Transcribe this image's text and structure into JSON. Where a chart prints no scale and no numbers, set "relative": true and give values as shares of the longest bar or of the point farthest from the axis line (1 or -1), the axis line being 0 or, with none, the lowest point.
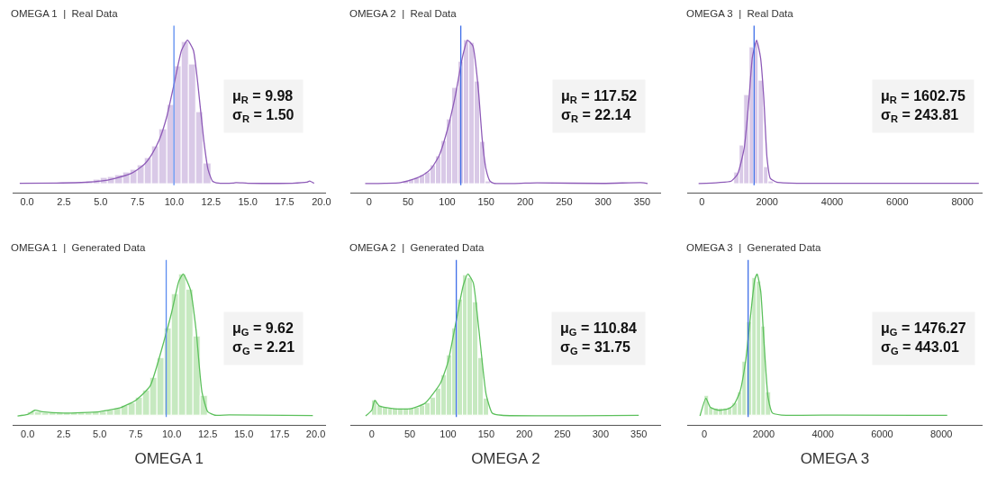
{
  "chart_data": [
    {
      "type": "histogram",
      "title": "OMEGA 1  |  Real Data",
      "relative": true,
      "tick_labels": "x",
      "xlim": [
        -1.0,
        20.3
      ],
      "xticks": [
        {
          "value": 0,
          "label": "0.0"
        },
        2.5,
        {
          "value": 5,
          "label": "5.0"
        },
        7.5,
        {
          "value": 10,
          "label": "10.0"
        },
        12.5,
        {
          "value": 15,
          "label": "15.0"
        },
        17.5,
        {
          "value": 20,
          "label": "20.0"
        }
      ],
      "series": [
        {
          "color": "#d9c9e7",
          "bins": [
            4.0,
            4.5,
            5.0,
            5.5,
            6.0,
            6.5,
            7.0,
            7.5,
            8.0,
            8.5,
            9.0,
            9.5,
            10.0,
            10.5,
            11.0,
            11.5,
            12.0,
            12.5
          ],
          "values": [
            0.02,
            0.03,
            0.04,
            0.05,
            0.06,
            0.08,
            0.1,
            0.13,
            0.18,
            0.26,
            0.38,
            0.55,
            0.82,
            0.99,
            0.83,
            0.5,
            0.14
          ]
        },
        {
          "type": "line",
          "color": "#8e5bb8",
          "x": [
            -0.5,
            2,
            4,
            5,
            6,
            7,
            7.5,
            8,
            8.5,
            9,
            9.5,
            10,
            10.5,
            10.9,
            11.3,
            11.6,
            12,
            12.3,
            12.6,
            13,
            14,
            14.2,
            15,
            18,
            19,
            19.2,
            19.5
          ],
          "values": [
            0.005,
            0.007,
            0.012,
            0.02,
            0.04,
            0.07,
            0.1,
            0.14,
            0.21,
            0.31,
            0.47,
            0.7,
            0.93,
            1.0,
            0.93,
            0.7,
            0.31,
            0.1,
            0.02,
            0.006,
            0.006,
            0.01,
            0.005,
            0.005,
            0.012,
            0.02,
            0.005
          ]
        }
      ],
      "ref_lines": [
        {
          "axis": "x",
          "value": 9.98,
          "color": "#5b8cf0"
        }
      ],
      "annotations": [
        "μ$_{R}$ = 9.98",
        "σ$_{R}$ = 1.50"
      ]
    },
    {
      "type": "histogram",
      "title": "OMEGA 2  |  Real Data",
      "relative": true,
      "tick_labels": "x",
      "xlim": [
        -24,
        374
      ],
      "xticks": [
        0,
        50,
        100,
        150,
        200,
        250,
        300,
        350
      ],
      "series": [
        {
          "color": "#d9c9e7",
          "bins": [
            44,
            51,
            58,
            65,
            72,
            79,
            86,
            93,
            100,
            107,
            114,
            121,
            128,
            135,
            142,
            149,
            156
          ],
          "values": [
            0.02,
            0.03,
            0.04,
            0.06,
            0.08,
            0.13,
            0.19,
            0.3,
            0.45,
            0.67,
            0.85,
            1.0,
            0.98,
            0.71,
            0.29,
            0.02
          ]
        },
        {
          "type": "line",
          "color": "#8e5bb8",
          "x": [
            -5,
            20,
            40,
            60,
            70,
            80,
            90,
            100,
            110,
            120,
            126,
            133,
            140,
            145,
            150,
            155,
            160,
            200,
            215,
            300,
            348,
            352,
            357
          ],
          "values": [
            0.003,
            0.005,
            0.01,
            0.04,
            0.065,
            0.11,
            0.2,
            0.37,
            0.6,
            0.89,
            1.0,
            0.96,
            0.66,
            0.31,
            0.1,
            0.02,
            0.005,
            0.006,
            0.008,
            0.004,
            0.01,
            0.008,
            0.004
          ]
        }
      ],
      "ref_lines": [
        {
          "axis": "x",
          "value": 117.52,
          "color": "#3f6fe8"
        }
      ],
      "annotations": [
        "μ$_{R}$ = 117.52",
        "σ$_{R}$ = 22.14"
      ]
    },
    {
      "type": "histogram",
      "title": "OMEGA 3  |  Real Data",
      "relative": true,
      "tick_labels": "x",
      "xlim": [
        -444,
        8604
      ],
      "xticks": [
        0,
        2000,
        4000,
        6000,
        8000
      ],
      "series": [
        {
          "color": "#d9c9e7",
          "bins": [
            1000,
            1150,
            1300,
            1450,
            1600,
            1750,
            1900,
            2050,
            2200
          ],
          "values": [
            0.08,
            0.27,
            0.62,
            0.95,
            0.98,
            0.72,
            0.12,
            0.02
          ]
        },
        {
          "type": "line",
          "color": "#8e5bb8",
          "x": [
            -100,
            500,
            900,
            1100,
            1300,
            1450,
            1550,
            1680,
            1800,
            1900,
            2000,
            2100,
            2300,
            3000,
            8500
          ],
          "values": [
            0.003,
            0.01,
            0.02,
            0.07,
            0.25,
            0.6,
            0.88,
            1.0,
            0.88,
            0.6,
            0.18,
            0.04,
            0.013,
            0.005,
            0.005
          ]
        }
      ],
      "ref_lines": [
        {
          "axis": "x",
          "value": 1602.75,
          "color": "#3f6fe8"
        }
      ],
      "annotations": [
        "μ$_{R}$ = 1602.75",
        "σ$_{R}$ = 243.81"
      ]
    },
    {
      "type": "histogram",
      "title": "OMEGA 1  |  Generated Data",
      "xlabel": "OMEGA 1",
      "relative": true,
      "tick_labels": "x",
      "xlim": [
        -1.06,
        20.7
      ],
      "xticks": [
        {
          "value": 0,
          "label": "0.0"
        },
        2.5,
        {
          "value": 5,
          "label": "5.0"
        },
        7.5,
        {
          "value": 10,
          "label": "10.0"
        },
        12.5,
        {
          "value": 15,
          "label": "15.0"
        },
        17.5,
        {
          "value": 20,
          "label": "20.0"
        }
      ],
      "series": [
        {
          "color": "#c6e9c0",
          "bins": [
            0,
            0.5,
            1,
            1.5,
            2,
            2.5,
            3,
            3.5,
            4,
            4.5,
            5,
            5.5,
            6,
            6.5,
            7,
            7.5,
            8,
            8.5,
            9,
            9.5,
            10,
            10.5,
            11,
            11.5,
            12,
            12.5
          ],
          "values": [
            0.03,
            0.03,
            0.02,
            0.02,
            0.02,
            0.02,
            0.02,
            0.02,
            0.02,
            0.03,
            0.03,
            0.04,
            0.05,
            0.07,
            0.09,
            0.13,
            0.18,
            0.27,
            0.41,
            0.62,
            0.86,
            1.0,
            0.89,
            0.56,
            0.14
          ]
        },
        {
          "type": "line",
          "color": "#5cc05c",
          "x": [
            -0.7,
            0,
            0.5,
            1,
            2.5,
            5,
            6.5,
            7.5,
            8.5,
            9.5,
            10,
            10.5,
            10.8,
            11.3,
            11.7,
            12.1,
            12.5,
            13,
            14,
            19.8
          ],
          "values": [
            0.0,
            0.01,
            0.04,
            0.03,
            0.02,
            0.03,
            0.06,
            0.11,
            0.21,
            0.54,
            0.73,
            0.95,
            1.0,
            0.89,
            0.6,
            0.17,
            0.03,
            0.005,
            0.008,
            0.003
          ]
        }
      ],
      "ref_lines": [
        {
          "axis": "x",
          "value": 9.62,
          "color": "#5b8cf0"
        }
      ],
      "annotations": [
        "μ$_{G}$ = 9.62",
        "σ$_{G}$ = 2.21"
      ]
    },
    {
      "type": "histogram",
      "title": "OMEGA 2  |  Generated Data",
      "xlabel": "OMEGA 2",
      "relative": true,
      "tick_labels": "x",
      "xlim": [
        -28,
        379
      ],
      "xticks": [
        0,
        50,
        100,
        150,
        200,
        250,
        300,
        350
      ],
      "series": [
        {
          "color": "#c6e9c0",
          "bins": [
            0,
            7,
            14,
            21,
            28,
            35,
            42,
            49,
            56,
            63,
            70,
            77,
            84,
            91,
            98,
            105,
            112,
            119,
            126,
            133,
            140,
            147,
            154
          ],
          "values": [
            0.11,
            0.07,
            0.06,
            0.05,
            0.05,
            0.05,
            0.05,
            0.05,
            0.06,
            0.07,
            0.09,
            0.13,
            0.19,
            0.29,
            0.43,
            0.62,
            0.82,
            0.99,
            0.97,
            0.8,
            0.41,
            0.12
          ]
        },
        {
          "type": "line",
          "color": "#5cc05c",
          "x": [
            -8,
            0,
            4,
            10,
            30,
            50,
            70,
            90,
            100,
            110,
            120,
            126,
            133,
            140,
            150,
            158,
            170,
            350
          ],
          "values": [
            0.0,
            0.04,
            0.11,
            0.07,
            0.05,
            0.05,
            0.09,
            0.23,
            0.38,
            0.65,
            0.92,
            1.0,
            0.94,
            0.63,
            0.15,
            0.02,
            0.005,
            0.004
          ]
        }
      ],
      "ref_lines": [
        {
          "axis": "x",
          "value": 110.84,
          "color": "#3f6fe8"
        }
      ],
      "annotations": [
        "μ$_{G}$ = 110.84",
        "σ$_{G}$ = 31.75"
      ]
    },
    {
      "type": "histogram",
      "title": "OMEGA 3  |  Generated Data",
      "xlabel": "OMEGA 3",
      "relative": true,
      "tick_labels": "x",
      "xlim": [
        -575,
        9380
      ],
      "xticks": [
        0,
        2000,
        4000,
        6000,
        8000
      ],
      "series": [
        {
          "color": "#c6e9c0",
          "bins": [
            0,
            160,
            320,
            480,
            640,
            800,
            960,
            1120,
            1280,
            1440,
            1600,
            1760,
            1920,
            2080,
            2240
          ],
          "values": [
            0.14,
            0.06,
            0.05,
            0.05,
            0.05,
            0.06,
            0.09,
            0.17,
            0.38,
            0.66,
            0.97,
            0.95,
            0.63,
            0.17
          ]
        },
        {
          "type": "line",
          "color": "#5cc05c",
          "x": [
            -150,
            50,
            200,
            500,
            800,
            1000,
            1200,
            1400,
            1550,
            1700,
            1780,
            1900,
            2000,
            2150,
            2300,
            2600,
            4500,
            8200
          ],
          "values": [
            0.0,
            0.125,
            0.06,
            0.04,
            0.05,
            0.08,
            0.17,
            0.4,
            0.69,
            0.96,
            1.0,
            0.88,
            0.56,
            0.13,
            0.02,
            0.006,
            0.006,
            0.004
          ]
        }
      ],
      "ref_lines": [
        {
          "axis": "x",
          "value": 1476.27,
          "color": "#3f6fe8"
        }
      ],
      "annotations": [
        "μ$_{G}$ = 1476.27",
        "σ$_{G}$ = 443.01"
      ]
    }
  ]
}
